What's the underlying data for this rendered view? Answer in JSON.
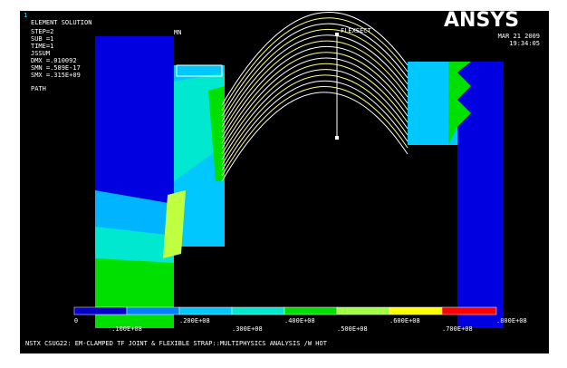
{
  "window": {
    "number": "1"
  },
  "info": {
    "title": "ELEMENT SOLUTION",
    "lines": [
      "STEP=2",
      "SUB =1",
      "TIME=1",
      "JSSUM",
      "DMX =.010092",
      "SMN =.589E-17",
      "SMX =.315E+09"
    ],
    "path": "PATH"
  },
  "markers": {
    "min": "MN",
    "section": "FLEXSECT"
  },
  "header": {
    "logo": "ANSYS",
    "date": "MAR 21 2009",
    "time": "19:34:05"
  },
  "legend": {
    "labels": [
      "0",
      ".100E+08",
      ".200E+08",
      ".300E+08",
      ".400E+08",
      ".500E+08",
      ".600E+08",
      ".700E+08",
      ".800E+08"
    ]
  },
  "footer": {
    "caption": "NSTX CSUG22: EM-CLAMPED TF JOINT & FLEXIBLE STRAP::MULTIPHYSICS ANALYSIS /W HOT"
  }
}
